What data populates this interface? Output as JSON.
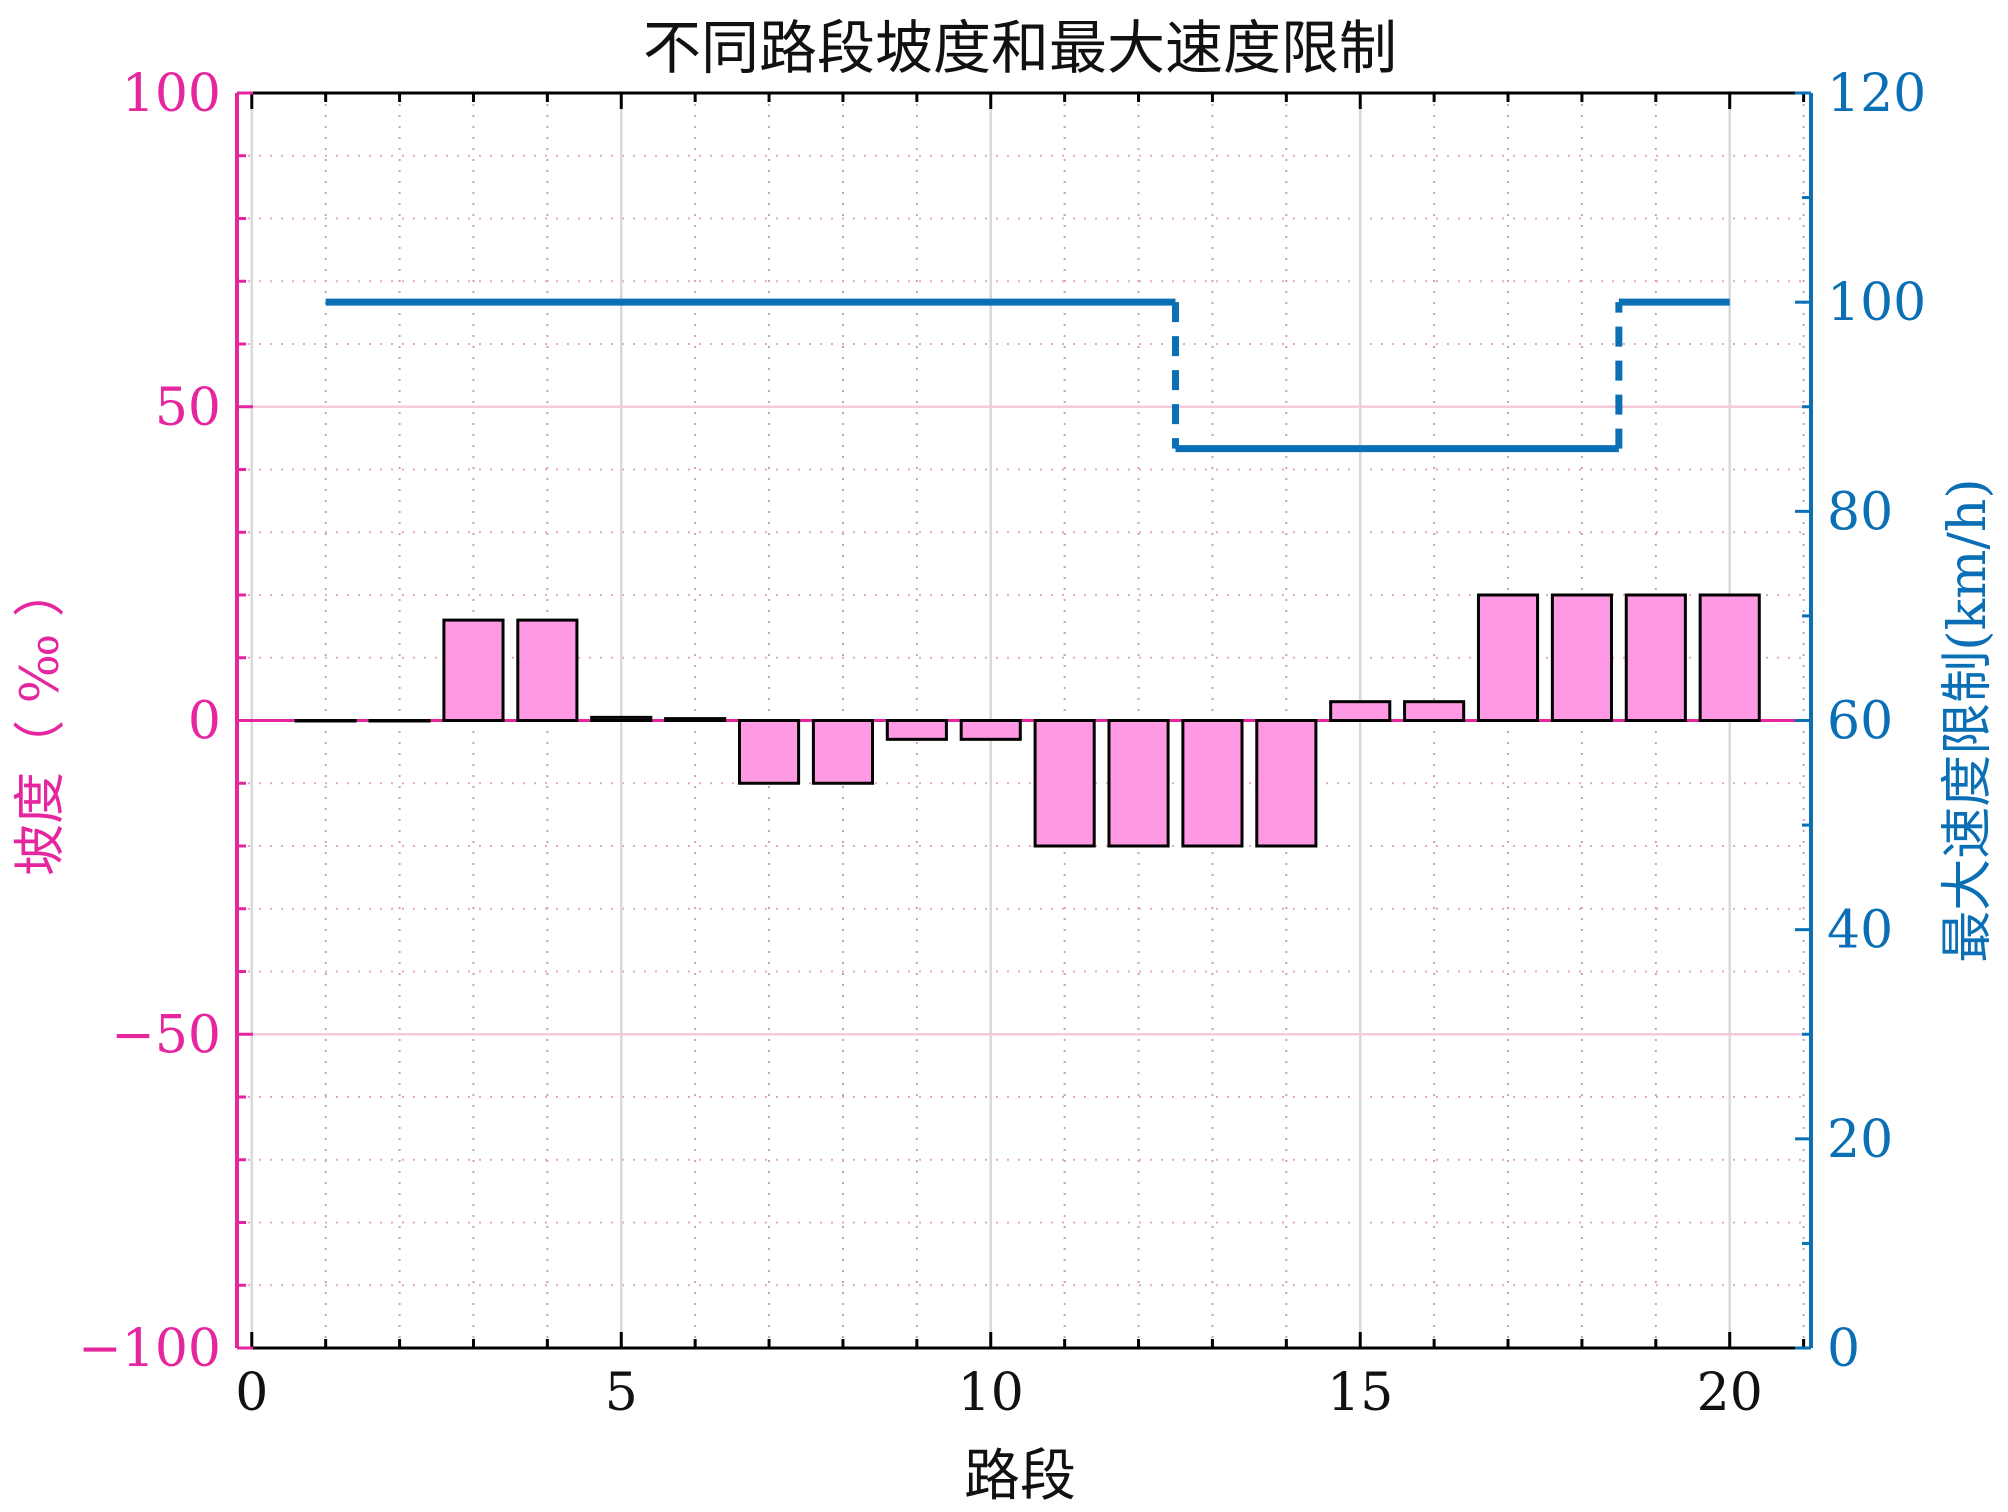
{
  "chart_data": {
    "type": "bar",
    "title": "不同路段坡度和最大速度限制",
    "xlabel": "路段",
    "ylabel_left": "坡度（ ‰ ）",
    "ylabel_right": "最大速度限制(km/h)",
    "xlim": [
      -0.2,
      21.1
    ],
    "ylim_left": [
      -100,
      100
    ],
    "ylim_right": [
      0,
      120
    ],
    "x_ticks": [
      0,
      5,
      10,
      15,
      20
    ],
    "x_tick_labels": [
      "0",
      "5",
      "10",
      "15",
      "20"
    ],
    "y_left_ticks": [
      -100,
      -50,
      0,
      50,
      100
    ],
    "y_left_tick_labels": [
      "−100",
      "−50",
      "0",
      "50",
      "100"
    ],
    "y_right_ticks": [
      0,
      20,
      40,
      60,
      80,
      100,
      120
    ],
    "y_right_tick_labels": [
      "0",
      "20",
      "40",
      "60",
      "80",
      "100",
      "120"
    ],
    "grid": true,
    "colors": {
      "gradient_bar_fill": "#ff99e3",
      "bar_edge": "#000000",
      "left_axis": "#e6269f",
      "right_axis": "#0a6fb5",
      "speed_line": "#0a6fb5",
      "major_grid": "#d9d9d9",
      "minor_grid": "#e8a6c2",
      "zero_line": "#e6269f"
    },
    "gradient_series": {
      "segments": [
        1,
        2,
        3,
        4,
        5,
        6,
        7,
        8,
        9,
        10,
        11,
        12,
        13,
        14,
        15,
        16,
        17,
        18,
        19,
        20
      ],
      "values": [
        0,
        0,
        16,
        16,
        0.5,
        0.3,
        -10,
        -10,
        -3,
        -3,
        -20,
        -20,
        -20,
        -20,
        3,
        3,
        20,
        20,
        20,
        20
      ]
    },
    "speed_limit_series": {
      "steps": [
        {
          "x_start": 1,
          "x_end": 12.5,
          "value": 100
        },
        {
          "x_start": 12.5,
          "x_end": 18.5,
          "value": 86
        },
        {
          "x_start": 18.5,
          "x_end": 20,
          "value": 100
        }
      ]
    }
  }
}
